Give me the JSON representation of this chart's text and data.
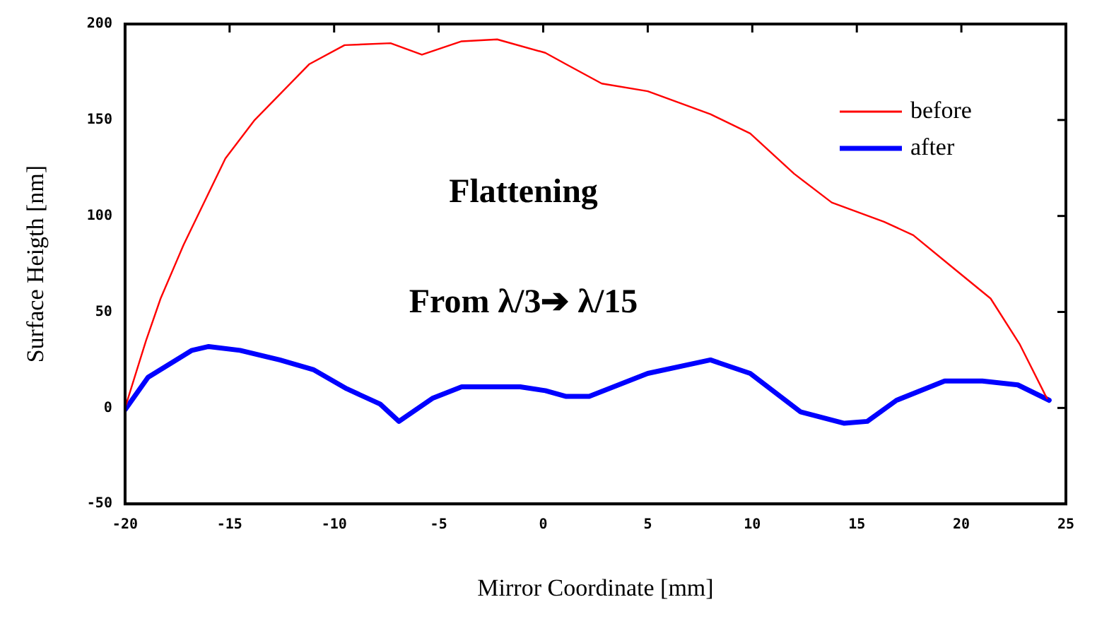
{
  "chart_data": {
    "type": "line",
    "xlabel": "Mirror Coordinate [mm]",
    "ylabel": "Surface Heigth [nm]",
    "annotations": [
      "Flattening",
      "From λ/3➔ λ/15"
    ],
    "xlim": [
      -20,
      25
    ],
    "xticks": [
      -20,
      -15,
      -10,
      -5,
      0,
      5,
      10,
      15,
      20,
      25
    ],
    "ylim": [
      -50,
      200
    ],
    "yticks": [
      -50,
      0,
      50,
      100,
      150,
      200
    ],
    "legend": "top right",
    "grid": false,
    "marker": "none",
    "line_style": "solid",
    "series": [
      {
        "name": "before",
        "color": "#ff0000",
        "x": [
          -20,
          -19,
          -18.3,
          -17.2,
          -15.2,
          -13.8,
          -11.2,
          -9.5,
          -7.3,
          -5.8,
          -3.9,
          -2.2,
          0.1,
          1.1,
          2.8,
          5,
          8,
          9.9,
          12,
          13.8,
          16.3,
          17.7,
          19.6,
          21.4,
          22.8,
          24,
          24.1
        ],
        "values": [
          0,
          35,
          57,
          85,
          130,
          150,
          179,
          189,
          190,
          184,
          191,
          192,
          185,
          179,
          169,
          165,
          153,
          143,
          122,
          107,
          97,
          90,
          73,
          57,
          33,
          7,
          5
        ]
      },
      {
        "name": "after",
        "color": "#0000ff",
        "x": [
          -20,
          -18.9,
          -16.8,
          -16,
          -14.5,
          -12.6,
          -11,
          -9.4,
          -7.8,
          -6.9,
          -5.3,
          -3.9,
          -1.1,
          0.1,
          1.1,
          2.2,
          5,
          8,
          9.9,
          12.3,
          14.4,
          15.5,
          16.9,
          19.2,
          21,
          22.7,
          24.2
        ],
        "values": [
          -1,
          16,
          30,
          32,
          30,
          25,
          20,
          10,
          2,
          -7,
          5,
          11,
          11,
          9,
          6,
          6,
          18,
          25,
          18,
          -2,
          -8,
          -7,
          4,
          14,
          14,
          12,
          4
        ]
      }
    ]
  }
}
